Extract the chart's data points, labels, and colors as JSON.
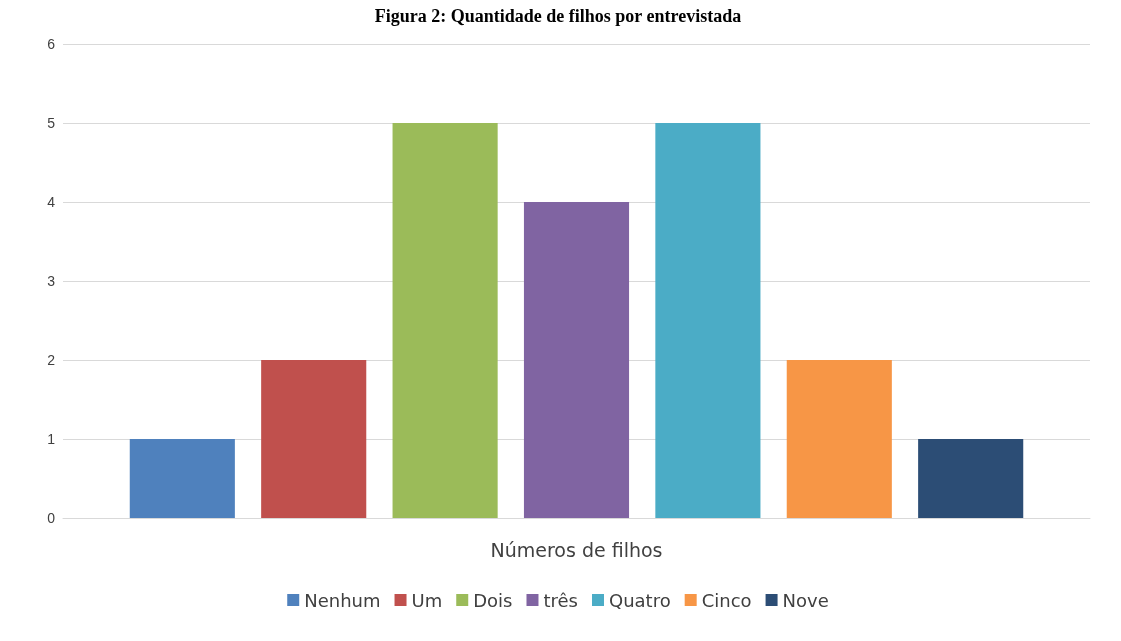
{
  "chart_data": {
    "type": "bar",
    "title": "Figura 2: Quantidade de filhos por entrevistada",
    "categories": [
      "Números de filhos"
    ],
    "series": [
      {
        "name": "Nenhum",
        "color": "#4f81bd",
        "values": [
          1
        ]
      },
      {
        "name": "Um",
        "color": "#c0504d",
        "values": [
          2
        ]
      },
      {
        "name": "Dois",
        "color": "#9bbb59",
        "values": [
          5
        ]
      },
      {
        "name": "três",
        "color": "#8064a2",
        "values": [
          4
        ]
      },
      {
        "name": "Quatro",
        "color": "#4bacc6",
        "values": [
          5
        ]
      },
      {
        "name": "Cinco",
        "color": "#f79646",
        "values": [
          2
        ]
      },
      {
        "name": "Nove",
        "color": "#2c4d75",
        "values": [
          1
        ]
      }
    ],
    "ylim": [
      0,
      6
    ],
    "yticks": [
      0,
      1,
      2,
      3,
      4,
      5,
      6
    ],
    "grid": "y",
    "legend": "bottom"
  }
}
